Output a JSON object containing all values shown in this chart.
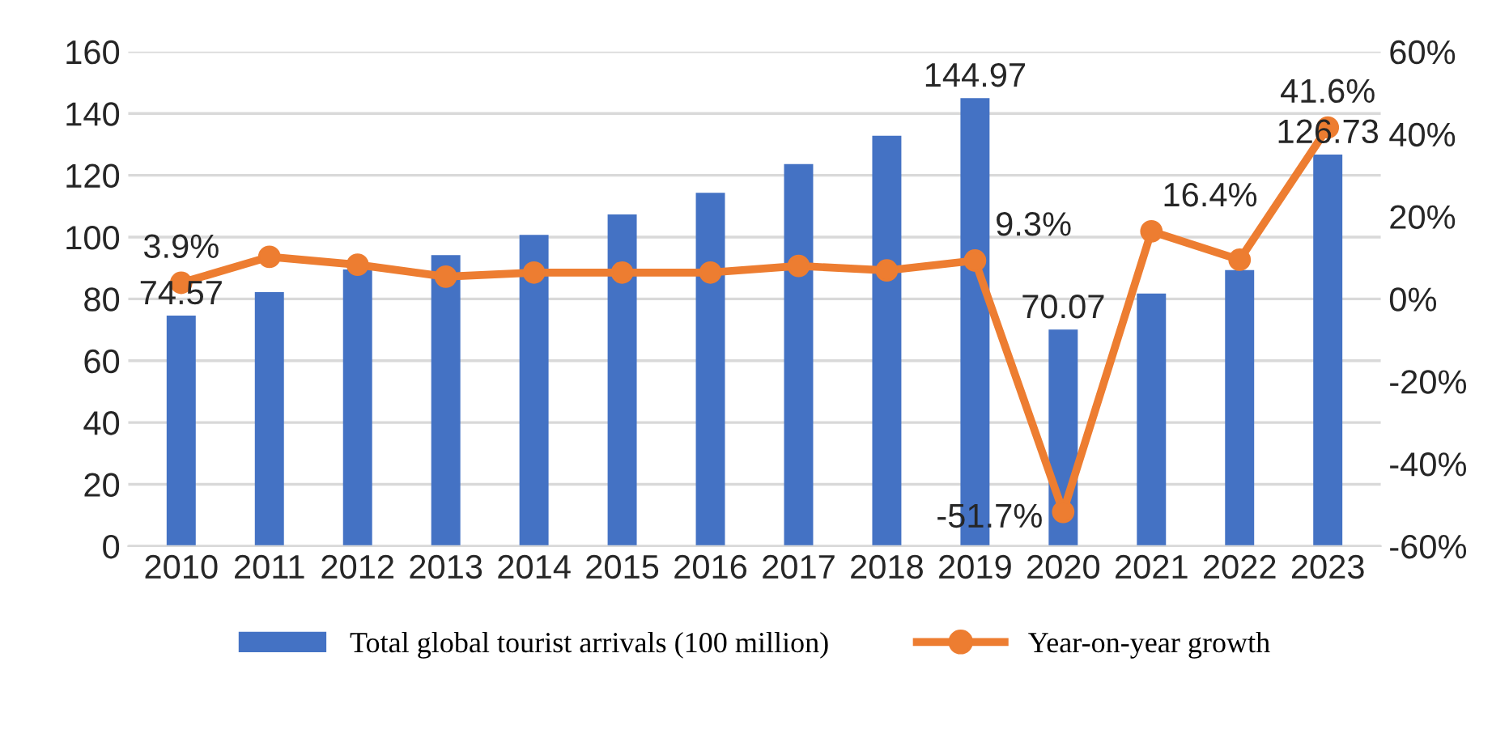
{
  "chart_data": {
    "type": "bar",
    "categories": [
      "2010",
      "2011",
      "2012",
      "2013",
      "2014",
      "2015",
      "2016",
      "2017",
      "2018",
      "2019",
      "2020",
      "2021",
      "2022",
      "2023"
    ],
    "series": [
      {
        "name": "Total global tourist arrivals (100 million)",
        "type": "bar",
        "color": "#4472c4",
        "values": [
          74.57,
          82.2,
          89.5,
          94.2,
          100.7,
          107.3,
          114.3,
          123.6,
          132.8,
          144.97,
          70.07,
          81.7,
          89.3,
          126.73
        ],
        "value_labels": [
          "74.57",
          null,
          null,
          null,
          null,
          null,
          null,
          null,
          null,
          "144.97",
          "70.07",
          null,
          null,
          "126.73"
        ]
      },
      {
        "name": "Year-on-year growth",
        "type": "line",
        "axis": "y2",
        "color": "#ed7d31",
        "marker": "circle",
        "values": [
          3.9,
          10.2,
          8.3,
          5.4,
          6.4,
          6.4,
          6.4,
          8.0,
          6.9,
          9.3,
          -51.7,
          16.4,
          9.5,
          41.6
        ],
        "value_labels": [
          "3.9%",
          null,
          null,
          null,
          null,
          null,
          null,
          null,
          null,
          "9.3%",
          "-51.7%",
          "16.4%",
          null,
          "41.6%"
        ]
      }
    ],
    "ylim": [
      0,
      160
    ],
    "yticks": [
      0,
      20,
      40,
      60,
      80,
      100,
      120,
      140,
      160
    ],
    "y2lim": [
      -60,
      60
    ],
    "y2ticks": [
      {
        "value": -60,
        "label": "-60%"
      },
      {
        "value": -40,
        "label": "-40%"
      },
      {
        "value": -20,
        "label": "-20%"
      },
      {
        "value": 0,
        "label": "0%"
      },
      {
        "value": 20,
        "label": "20%"
      },
      {
        "value": 40,
        "label": "40%"
      },
      {
        "value": 60,
        "label": "60%"
      }
    ],
    "grid": "y",
    "legend": "bottom"
  }
}
